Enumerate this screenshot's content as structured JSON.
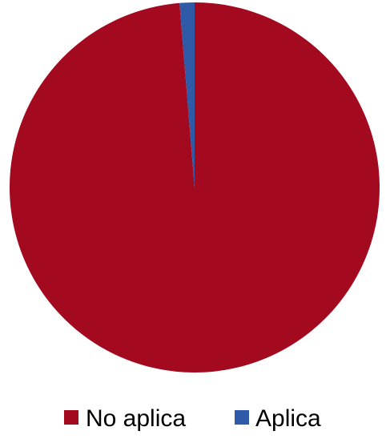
{
  "chart_data": {
    "type": "pie",
    "title": "",
    "slices": [
      {
        "label": "No aplica",
        "value": 98.7,
        "color": "#a30a20"
      },
      {
        "label": "Aplica",
        "value": 1.3,
        "color": "#2e5aa8"
      }
    ],
    "start_angle_deg": 0,
    "direction": "clockwise",
    "legend_position": "bottom"
  }
}
